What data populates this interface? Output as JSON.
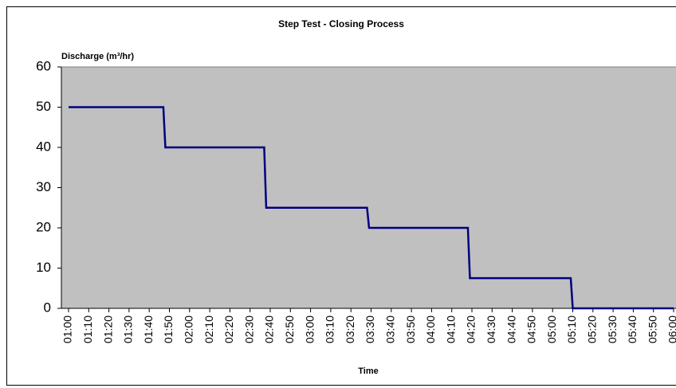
{
  "chart_data": {
    "type": "line",
    "title": "Step Test - Closing Process",
    "y_label": "Discharge (m³/hr)",
    "x_label": "Time",
    "categories": [
      "01:00",
      "01:10",
      "01:20",
      "01:30",
      "01:40",
      "01:50",
      "02:00",
      "02:10",
      "02:20",
      "02:30",
      "02:40",
      "02:50",
      "03:00",
      "03:10",
      "03:20",
      "03:30",
      "03:40",
      "03:50",
      "04:00",
      "04:10",
      "04:20",
      "04:30",
      "04:40",
      "04:50",
      "05:00",
      "05:10",
      "05:20",
      "05:30",
      "05:40",
      "05:50",
      "06:00"
    ],
    "series": [
      {
        "color": "#000080",
        "x": [
          "01:00",
          "01:47",
          "01:48",
          "02:37",
          "02:38",
          "03:28",
          "03:29",
          "04:18",
          "04:19",
          "05:09",
          "05:10",
          "06:00"
        ],
        "values": [
          50,
          50,
          40,
          40,
          25,
          25,
          20,
          20,
          7.5,
          7.5,
          0,
          0
        ]
      }
    ],
    "ylim": [
      0,
      60
    ],
    "yticks": [
      0,
      10,
      20,
      30,
      40,
      50,
      60
    ],
    "plot_background": "#c0c0c0"
  }
}
